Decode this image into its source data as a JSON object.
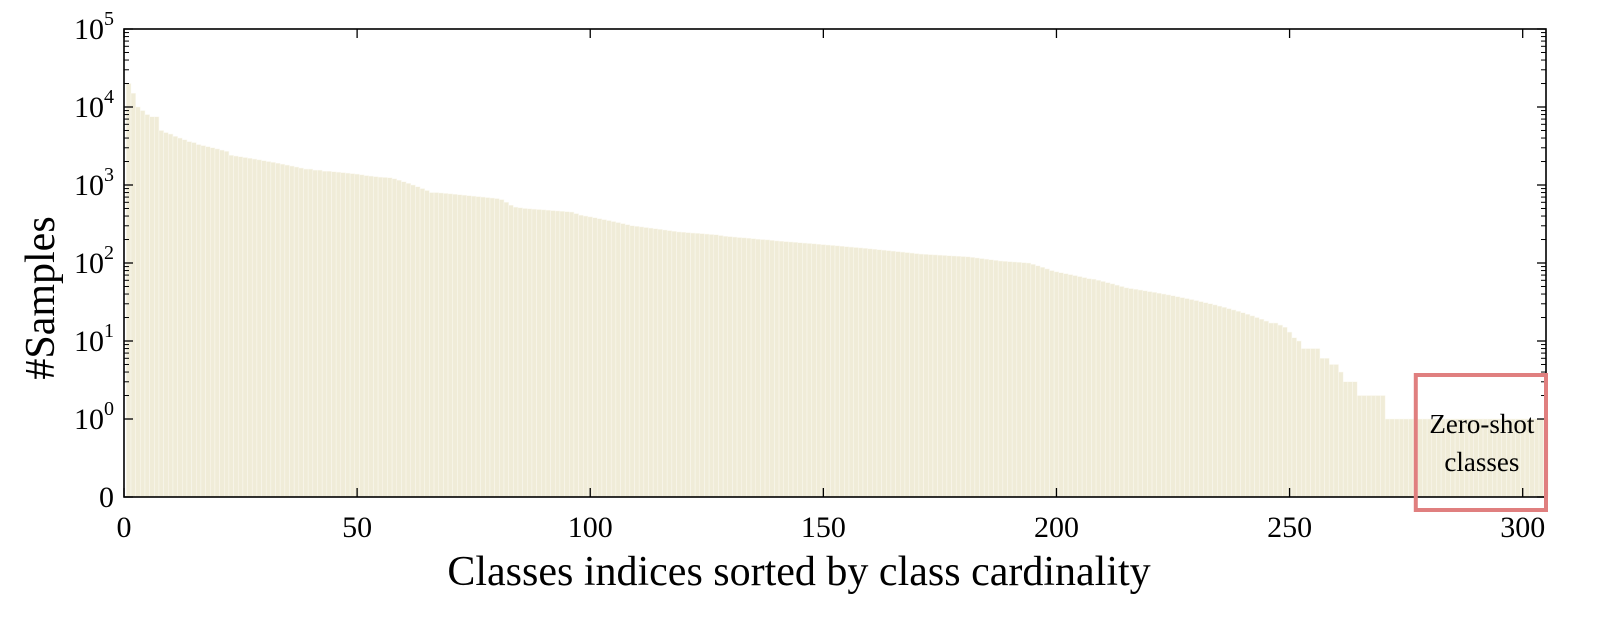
{
  "chart_data": {
    "type": "bar",
    "title": "",
    "xlabel": "Classes indices sorted by class cardinality",
    "ylabel": "#Samples",
    "x_range": [
      0,
      305
    ],
    "x_ticks": [
      0,
      50,
      100,
      150,
      200,
      250,
      300
    ],
    "x_tick_labels": [
      "0",
      "50",
      "100",
      "150",
      "200",
      "250",
      "300"
    ],
    "y_scale": "log",
    "y_ticks": [
      0,
      1,
      10,
      100,
      1000,
      10000,
      100000
    ],
    "y_tick_labels": [
      {
        "base": "0",
        "exp": ""
      },
      {
        "base": "10",
        "exp": "0"
      },
      {
        "base": "10",
        "exp": "1"
      },
      {
        "base": "10",
        "exp": "2"
      },
      {
        "base": "10",
        "exp": "3"
      },
      {
        "base": "10",
        "exp": "4"
      },
      {
        "base": "10",
        "exp": "5"
      }
    ],
    "grid": false,
    "bar_color": "#f0ecd8",
    "bar_edge_color": "#fbf9f1",
    "series": [
      {
        "values": [
          20000,
          15000,
          10000,
          9000,
          8000,
          7500,
          7500,
          5000,
          4700,
          4500,
          4200,
          4000,
          3800,
          3600,
          3500,
          3300,
          3200,
          3100,
          3000,
          2900,
          2800,
          2700,
          2400,
          2350,
          2300,
          2250,
          2200,
          2150,
          2100,
          2050,
          2000,
          1950,
          1900,
          1850,
          1800,
          1750,
          1700,
          1650,
          1600,
          1600,
          1550,
          1550,
          1500,
          1500,
          1480,
          1460,
          1440,
          1420,
          1400,
          1380,
          1350,
          1320,
          1300,
          1280,
          1260,
          1250,
          1240,
          1200,
          1150,
          1100,
          1050,
          1000,
          950,
          900,
          850,
          800,
          800,
          790,
          780,
          770,
          760,
          750,
          740,
          730,
          720,
          710,
          700,
          690,
          680,
          670,
          650,
          600,
          550,
          520,
          510,
          500,
          495,
          490,
          485,
          480,
          475,
          470,
          465,
          460,
          455,
          450,
          430,
          410,
          400,
          390,
          380,
          370,
          360,
          350,
          340,
          330,
          320,
          310,
          300,
          295,
          290,
          285,
          280,
          275,
          270,
          265,
          260,
          255,
          250,
          248,
          245,
          242,
          240,
          238,
          235,
          232,
          230,
          225,
          220,
          218,
          215,
          212,
          210,
          208,
          205,
          202,
          200,
          198,
          195,
          192,
          190,
          188,
          186,
          184,
          182,
          180,
          178,
          176,
          174,
          172,
          170,
          168,
          166,
          164,
          162,
          160,
          158,
          156,
          154,
          152,
          150,
          148,
          146,
          144,
          142,
          140,
          138,
          136,
          134,
          132,
          130,
          129,
          128,
          127,
          126,
          125,
          124,
          123,
          122,
          121,
          120,
          118,
          116,
          114,
          112,
          110,
          108,
          106,
          105,
          104,
          103,
          102,
          101,
          100,
          96,
          92,
          88,
          84,
          80,
          77,
          75,
          73,
          71,
          69,
          67,
          65,
          63,
          62,
          60,
          58,
          56,
          54,
          52,
          50,
          48,
          47,
          46,
          45,
          44,
          43,
          42,
          41,
          40,
          39,
          38,
          37,
          36,
          35,
          34,
          33,
          32,
          31,
          30,
          29,
          28,
          27,
          26,
          25,
          24,
          23,
          22,
          21,
          20,
          19,
          18,
          17,
          17,
          16,
          15,
          13,
          11,
          10,
          8,
          8,
          8,
          8,
          6,
          6,
          5,
          5,
          4,
          3,
          3,
          3,
          2,
          2,
          2,
          2,
          2,
          2,
          1,
          1,
          1,
          1,
          1,
          1,
          1,
          1,
          1,
          1,
          1,
          1,
          1,
          1,
          1,
          1,
          1,
          1,
          1,
          1,
          1,
          1,
          1,
          1,
          1,
          1,
          1,
          1,
          1,
          1,
          1,
          1,
          1,
          1,
          1
        ]
      }
    ],
    "annotations": [
      {
        "lines": [
          "Zero-shot",
          "classes"
        ],
        "box_color": "#e07f7f"
      }
    ]
  }
}
